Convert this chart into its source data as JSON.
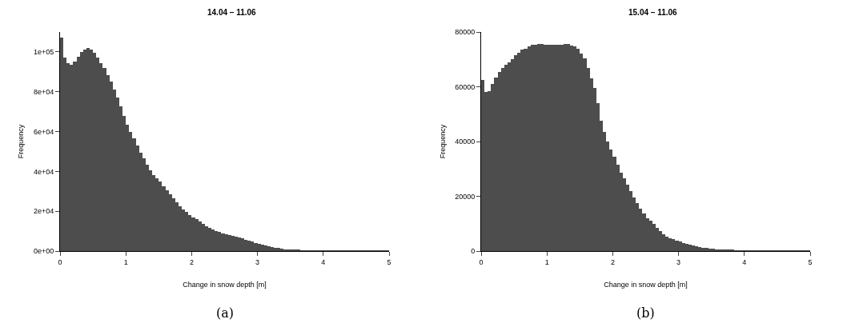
{
  "chart_data": [
    {
      "type": "histogram",
      "title": "14.04 – 11.06",
      "xlabel": "Change in snow depth [m]",
      "ylabel": "Frequency",
      "color": "#4d4d4d",
      "grid": false,
      "xlim": [
        0,
        5
      ],
      "xticks": [
        0,
        1,
        2,
        3,
        4,
        5
      ],
      "ylim": [
        0,
        110000
      ],
      "yticks": [
        {
          "value": 0,
          "label": "0e+00"
        },
        {
          "value": 20000,
          "label": "2e+04"
        },
        {
          "value": 40000,
          "label": "4e+04"
        },
        {
          "value": 60000,
          "label": "6e+04"
        },
        {
          "value": 80000,
          "label": "8e+04"
        },
        {
          "value": 100000,
          "label": "1e+05"
        }
      ],
      "annotations": [
        "(a)"
      ],
      "bins": [
        0,
        0.05,
        0.1,
        0.15,
        0.2,
        0.25,
        0.3,
        0.35,
        0.4,
        0.45,
        0.5,
        0.55,
        0.6,
        0.65,
        0.7,
        0.75,
        0.8,
        0.85,
        0.9,
        0.95,
        1,
        1.05,
        1.1,
        1.15,
        1.2,
        1.25,
        1.3,
        1.35,
        1.4,
        1.45,
        1.5,
        1.55,
        1.6,
        1.65,
        1.7,
        1.75,
        1.8,
        1.85,
        1.9,
        1.95,
        2,
        2.05,
        2.1,
        2.15,
        2.2,
        2.25,
        2.3,
        2.35,
        2.4,
        2.45,
        2.5,
        2.55,
        2.6,
        2.65,
        2.7,
        2.75,
        2.8,
        2.85,
        2.9,
        2.95,
        3,
        3.05,
        3.1,
        3.15,
        3.2,
        3.25,
        3.3,
        3.35,
        3.4,
        3.45,
        3.5,
        3.55,
        3.6,
        3.65,
        3.7,
        3.75,
        3.8,
        3.85,
        3.9,
        3.95,
        4,
        4.05,
        4.1,
        4.15,
        4.2,
        4.25,
        4.3,
        4.35,
        4.4,
        4.45,
        4.5,
        4.55,
        4.6,
        4.65,
        4.7,
        4.75,
        4.8,
        4.85,
        4.9,
        4.95,
        5
      ],
      "values": [
        107000,
        97000,
        94500,
        93500,
        95000,
        97500,
        99800,
        101200,
        101800,
        101000,
        99500,
        97000,
        94500,
        92000,
        88500,
        85000,
        81000,
        77000,
        72500,
        68000,
        63500,
        60000,
        56500,
        53000,
        49500,
        46500,
        43500,
        40500,
        38000,
        36500,
        35000,
        32500,
        30500,
        28500,
        26500,
        24500,
        22500,
        21000,
        19500,
        18000,
        17000,
        16000,
        14800,
        13500,
        12500,
        11800,
        11000,
        10200,
        9600,
        9000,
        8400,
        8000,
        7500,
        7100,
        6800,
        6300,
        5800,
        5200,
        4700,
        4200,
        3800,
        3300,
        2900,
        2500,
        2100,
        1800,
        1500,
        1200,
        1000,
        800,
        650,
        550,
        450,
        380,
        320,
        270,
        230,
        200,
        170,
        150,
        130,
        115,
        100,
        90,
        80,
        70,
        62,
        55,
        50,
        45,
        40,
        36,
        32,
        28,
        25,
        22,
        20,
        17,
        15,
        12
      ]
    },
    {
      "type": "histogram",
      "title": "15.04 – 11.06",
      "xlabel": "Change in snow depth [m]",
      "ylabel": "Frequency",
      "color": "#4d4d4d",
      "grid": false,
      "xlim": [
        0,
        5
      ],
      "xticks": [
        0,
        1,
        2,
        3,
        4,
        5
      ],
      "ylim": [
        0,
        80000
      ],
      "yticks": [
        0,
        20000,
        40000,
        60000,
        80000
      ],
      "annotations": [
        "(b)"
      ],
      "bins": [
        0,
        0.05,
        0.1,
        0.15,
        0.2,
        0.25,
        0.3,
        0.35,
        0.4,
        0.45,
        0.5,
        0.55,
        0.6,
        0.65,
        0.7,
        0.75,
        0.8,
        0.85,
        0.9,
        0.95,
        1,
        1.05,
        1.1,
        1.15,
        1.2,
        1.25,
        1.3,
        1.35,
        1.4,
        1.45,
        1.5,
        1.55,
        1.6,
        1.65,
        1.7,
        1.75,
        1.8,
        1.85,
        1.9,
        1.95,
        2,
        2.05,
        2.1,
        2.15,
        2.2,
        2.25,
        2.3,
        2.35,
        2.4,
        2.45,
        2.5,
        2.55,
        2.6,
        2.65,
        2.7,
        2.75,
        2.8,
        2.85,
        2.9,
        2.95,
        3,
        3.05,
        3.1,
        3.15,
        3.2,
        3.25,
        3.3,
        3.35,
        3.4,
        3.45,
        3.5,
        3.55,
        3.6,
        3.65,
        3.7,
        3.75,
        3.8,
        3.85,
        3.9,
        3.95,
        4,
        4.05,
        4.1,
        4.15,
        4.2,
        4.25,
        4.3,
        4.35,
        4.4,
        4.45,
        4.5,
        4.55,
        4.6,
        4.65,
        4.7,
        4.75,
        4.8,
        4.85,
        4.9,
        4.95,
        5
      ],
      "values": [
        62500,
        58000,
        58500,
        61000,
        63500,
        65500,
        67000,
        68000,
        69000,
        70000,
        71500,
        72500,
        73500,
        74000,
        74800,
        75200,
        75400,
        75500,
        75500,
        75300,
        75200,
        75200,
        75300,
        75200,
        75400,
        75700,
        75600,
        75100,
        74800,
        73800,
        72000,
        70500,
        67000,
        63000,
        59500,
        54000,
        47500,
        43500,
        40000,
        37000,
        34500,
        31500,
        28700,
        26500,
        24300,
        21800,
        19600,
        17500,
        15400,
        13600,
        12100,
        11000,
        9900,
        8600,
        7300,
        6100,
        5200,
        4700,
        4300,
        3800,
        3400,
        3000,
        2600,
        2200,
        1900,
        1650,
        1400,
        1250,
        1100,
        950,
        800,
        700,
        600,
        520,
        450,
        390,
        340,
        290,
        250,
        220,
        190,
        170,
        150,
        130,
        115,
        100,
        90,
        80,
        70,
        62,
        55,
        48,
        42,
        37,
        32,
        28,
        24,
        20,
        17,
        14
      ]
    }
  ]
}
